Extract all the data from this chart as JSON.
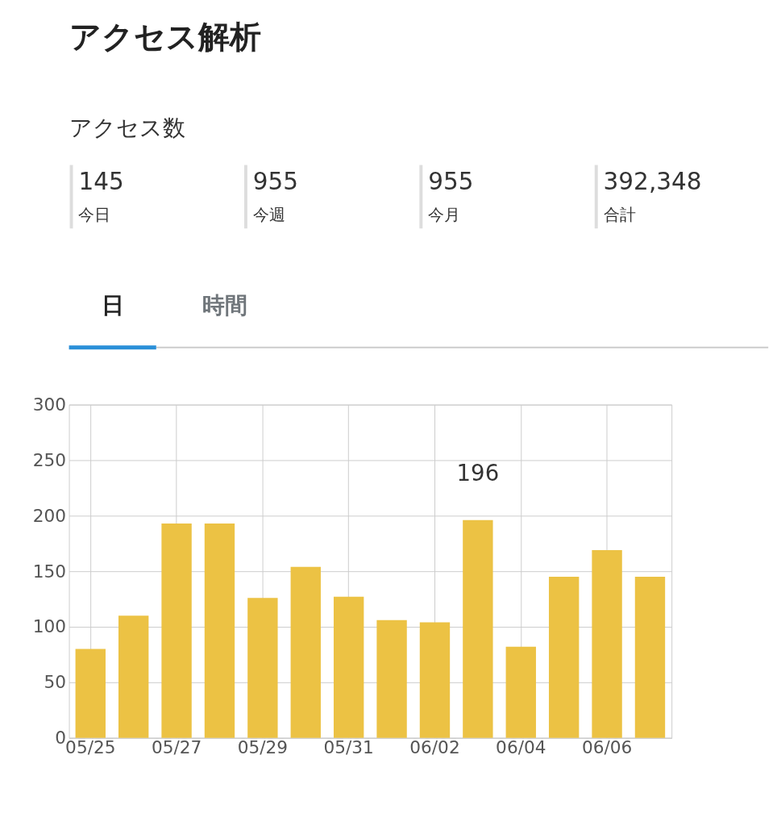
{
  "chart_data": {
    "type": "bar",
    "title": "アクセス解析",
    "subtitle": "アクセス数",
    "annotations": [
      "145",
      "今日",
      "955",
      "今週",
      "955",
      "今月",
      "392,348",
      "合計",
      "日",
      "時間"
    ],
    "categories": [
      "05/25",
      null,
      "05/27",
      null,
      "05/29",
      null,
      "05/31",
      null,
      "06/02",
      null,
      "06/04",
      null,
      "06/06",
      null
    ],
    "values": [
      80,
      110,
      193,
      193,
      126,
      154,
      127,
      106,
      104,
      196,
      82,
      145,
      169,
      145
    ],
    "value_labels": [
      null,
      null,
      null,
      null,
      null,
      null,
      null,
      null,
      null,
      "196",
      null,
      null,
      null,
      null
    ],
    "color": "#ecc244",
    "ylim": [
      0,
      300
    ],
    "yticks": [
      0,
      50,
      100,
      150,
      200,
      250,
      300
    ],
    "grid": true
  }
}
